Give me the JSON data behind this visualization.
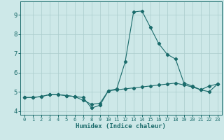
{
  "xlabel": "Humidex (Indice chaleur)",
  "xlim": [
    -0.5,
    23.5
  ],
  "ylim": [
    3.8,
    9.7
  ],
  "yticks": [
    4,
    5,
    6,
    7,
    8,
    9
  ],
  "xticks": [
    0,
    1,
    2,
    3,
    4,
    5,
    6,
    7,
    8,
    9,
    10,
    11,
    12,
    13,
    14,
    15,
    16,
    17,
    18,
    19,
    20,
    21,
    22,
    23
  ],
  "background_color": "#cde8e8",
  "grid_color": "#aacccc",
  "line_color": "#1a6b6b",
  "series1_x": [
    0,
    1,
    2,
    3,
    4,
    5,
    6,
    7,
    8,
    9,
    10,
    11,
    12,
    13,
    14,
    15,
    16,
    17,
    18,
    19,
    20,
    21,
    22,
    23
  ],
  "series1_y": [
    4.7,
    4.7,
    4.75,
    4.85,
    4.85,
    4.8,
    4.75,
    4.7,
    4.15,
    4.3,
    5.05,
    5.1,
    5.15,
    5.2,
    5.25,
    5.3,
    5.35,
    5.4,
    5.45,
    5.35,
    5.25,
    5.1,
    5.3,
    5.4
  ],
  "series2_x": [
    0,
    1,
    2,
    3,
    4,
    5,
    6,
    7,
    8,
    9,
    10,
    11,
    12,
    13,
    14,
    15,
    16,
    17,
    18,
    19,
    20,
    21,
    22,
    23
  ],
  "series2_y": [
    4.7,
    4.7,
    4.75,
    4.85,
    4.85,
    4.8,
    4.75,
    4.55,
    4.35,
    4.4,
    5.05,
    5.15,
    6.55,
    9.15,
    9.2,
    8.35,
    7.5,
    6.95,
    6.7,
    5.45,
    5.3,
    5.1,
    5.0,
    5.4
  ]
}
